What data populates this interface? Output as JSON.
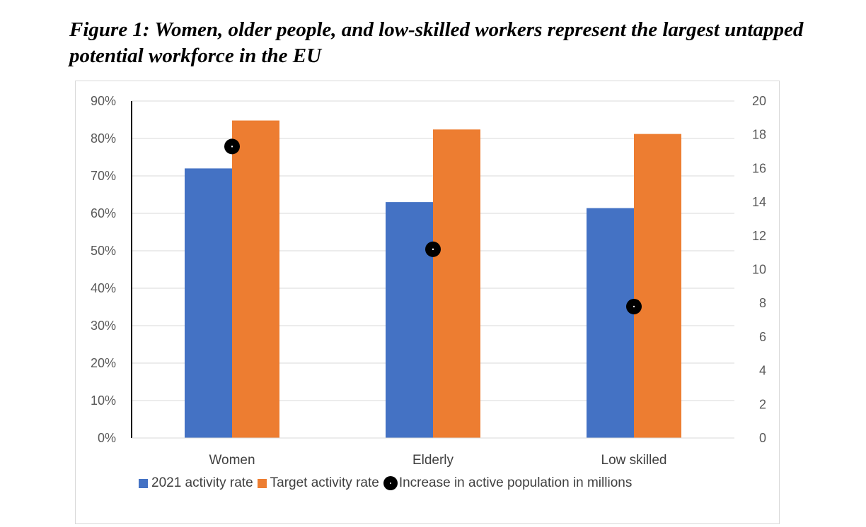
{
  "figure_title": "Figure 1: Women, older people, and low-skilled workers represent the largest untapped potential workforce in the EU",
  "colors": {
    "series1": "#4472c4",
    "series2": "#ed7d31",
    "markers": "#000000",
    "grid": "#d9d9d9"
  },
  "chart_data": {
    "type": "bar",
    "title": "",
    "categories": [
      "Women",
      "Elderly",
      "Low skilled"
    ],
    "series": [
      {
        "name": "2021 activity rate",
        "type": "bar",
        "axis": "left",
        "values": [
          72,
          63,
          61.4
        ]
      },
      {
        "name": "Target activity rate",
        "type": "bar",
        "axis": "left",
        "values": [
          84.8,
          82.4,
          81.2
        ]
      },
      {
        "name": "Increase in active population in millions",
        "type": "scatter",
        "axis": "right",
        "values": [
          17.3,
          11.2,
          7.8
        ]
      }
    ],
    "y_left": {
      "ylim": [
        0,
        90
      ],
      "ticks": [
        "0%",
        "10%",
        "20%",
        "30%",
        "40%",
        "50%",
        "60%",
        "70%",
        "80%",
        "90%"
      ]
    },
    "y_right": {
      "ylim": [
        0,
        20
      ],
      "ticks": [
        "0",
        "2",
        "4",
        "6",
        "8",
        "10",
        "12",
        "14",
        "16",
        "18",
        "20"
      ]
    },
    "grid": true,
    "legend": "bottom"
  }
}
